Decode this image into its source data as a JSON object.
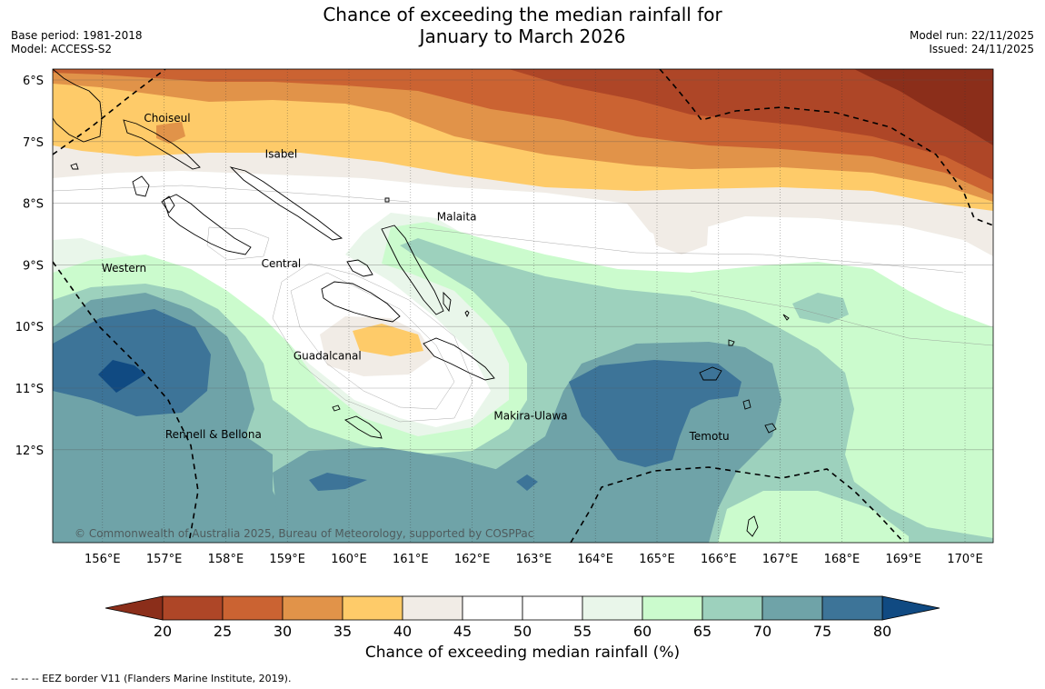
{
  "title": {
    "line1": "Chance of exceeding the median rainfall for",
    "line2": "January to March 2026"
  },
  "meta": {
    "base_period": "Base period: 1981-2018",
    "model": "Model: ACCESS-S2",
    "model_run": "Model run: 22/11/2025",
    "issued": "Issued: 24/11/2025"
  },
  "colors": {
    "c_lt20": "#8b2e1a",
    "c_20_25": "#ae4627",
    "c_25_30": "#cb6332",
    "c_30_35": "#e19349",
    "c_35_40": "#fecb69",
    "c_40_45": "#f1ece6",
    "c_45_55": "#ffffff",
    "c_55_60": "#e9f6ea",
    "c_60_65": "#cbfbcd",
    "c_65_70": "#9dd1bd",
    "c_70_75": "#6fa3a8",
    "c_75_80": "#3d7498",
    "c_gt80": "#104a82"
  },
  "map": {
    "lat_labels": [
      "6°S",
      "7°S",
      "8°S",
      "9°S",
      "10°S",
      "11°S",
      "12°S"
    ],
    "lon_labels": [
      "156°E",
      "157°E",
      "158°E",
      "159°E",
      "160°E",
      "161°E",
      "162°E",
      "163°E",
      "164°E",
      "165°E",
      "166°E",
      "167°E",
      "168°E",
      "169°E",
      "170°E"
    ],
    "regions": [
      "Choiseul",
      "Isabel",
      "Malaita",
      "Western",
      "Central",
      "Guadalcanal",
      "Makira-Ulawa",
      "Rennell & Bellona",
      "Temotu"
    ],
    "copyright": "© Commonwealth of Australia 2025, Bureau of Meteorology, supported by COSPPac"
  },
  "colorbar": {
    "ticks": [
      "20",
      "25",
      "30",
      "35",
      "40",
      "45",
      "50",
      "55",
      "60",
      "65",
      "70",
      "75",
      "80"
    ],
    "label": "Chance of exceeding median rainfall (%)"
  },
  "footnote": "--  --  -- EEZ border V11 (Flanders Marine Institute, 2019)."
}
